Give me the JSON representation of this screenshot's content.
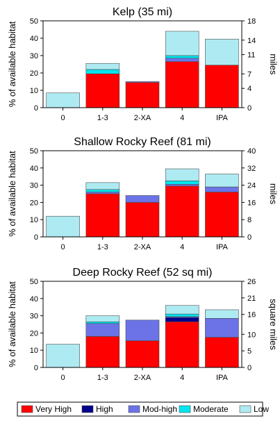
{
  "legend": [
    {
      "label": "Very High",
      "color": "#ff0000"
    },
    {
      "label": "High",
      "color": "#00008b"
    },
    {
      "label": "Mod-high",
      "color": "#6b73e6"
    },
    {
      "label": "Moderate",
      "color": "#00e5ee"
    },
    {
      "label": "Low",
      "color": "#aeeaf2"
    }
  ],
  "chart_data": [
    {
      "type": "bar",
      "stacked": true,
      "title": "Kelp (35 mi)",
      "ylabel": "% of available habitat",
      "y2label": "miles",
      "ylim": [
        0,
        50
      ],
      "yticks": [
        0,
        10,
        20,
        30,
        40,
        50
      ],
      "y2lim": [
        0,
        18
      ],
      "y2ticks": [
        0,
        4,
        7,
        11,
        14,
        18
      ],
      "categories": [
        "0",
        "1-3",
        "2-XA",
        "4",
        "IPA"
      ],
      "series": [
        {
          "name": "Very High",
          "values": [
            0,
            19.5,
            14.5,
            26.5,
            24.5
          ]
        },
        {
          "name": "High",
          "values": [
            0,
            0,
            0,
            0,
            0
          ]
        },
        {
          "name": "Mod-high",
          "values": [
            0,
            0,
            0.5,
            2.0,
            0
          ]
        },
        {
          "name": "Moderate",
          "values": [
            0,
            2.5,
            0,
            1.5,
            0
          ]
        },
        {
          "name": "Low",
          "values": [
            8.5,
            3.5,
            0,
            14.0,
            15.0
          ]
        }
      ]
    },
    {
      "type": "bar",
      "stacked": true,
      "title": "Shallow Rocky Reef (81 mi)",
      "ylabel": "% of available habitat",
      "y2label": "miles",
      "ylim": [
        0,
        50
      ],
      "yticks": [
        0,
        10,
        20,
        30,
        40,
        50
      ],
      "y2lim": [
        0,
        40
      ],
      "y2ticks": [
        0,
        8,
        16,
        24,
        32,
        40
      ],
      "categories": [
        "0",
        "1-3",
        "2-XA",
        "4",
        "IPA"
      ],
      "series": [
        {
          "name": "Very High",
          "values": [
            0,
            25.0,
            20.0,
            29.5,
            26.0
          ]
        },
        {
          "name": "High",
          "values": [
            0,
            0,
            0,
            0,
            0
          ]
        },
        {
          "name": "Mod-high",
          "values": [
            0,
            1.0,
            4.0,
            1.0,
            3.0
          ]
        },
        {
          "name": "Moderate",
          "values": [
            0,
            1.5,
            0,
            2.0,
            0
          ]
        },
        {
          "name": "Low",
          "values": [
            12.0,
            4.0,
            0,
            7.0,
            7.5
          ]
        }
      ]
    },
    {
      "type": "bar",
      "stacked": true,
      "title": "Deep Rocky Reef (52 sq mi)",
      "ylabel": "% of available habitat",
      "y2label": "square miles",
      "ylim": [
        0,
        50
      ],
      "yticks": [
        0,
        10,
        20,
        30,
        40,
        50
      ],
      "y2lim": [
        0,
        26
      ],
      "y2ticks": [
        0,
        5,
        10,
        16,
        21,
        26
      ],
      "categories": [
        "0",
        "1-3",
        "2-XA",
        "4",
        "IPA"
      ],
      "series": [
        {
          "name": "Very High",
          "values": [
            0,
            18.0,
            15.5,
            26.5,
            17.5
          ]
        },
        {
          "name": "High",
          "values": [
            0,
            0,
            0,
            2.5,
            0
          ]
        },
        {
          "name": "Mod-high",
          "values": [
            0,
            7.5,
            12.0,
            0.5,
            11.0
          ]
        },
        {
          "name": "Moderate",
          "values": [
            0,
            1.0,
            0,
            1.5,
            0
          ]
        },
        {
          "name": "Low",
          "values": [
            13.5,
            3.5,
            0,
            5.0,
            5.0
          ]
        }
      ]
    }
  ]
}
